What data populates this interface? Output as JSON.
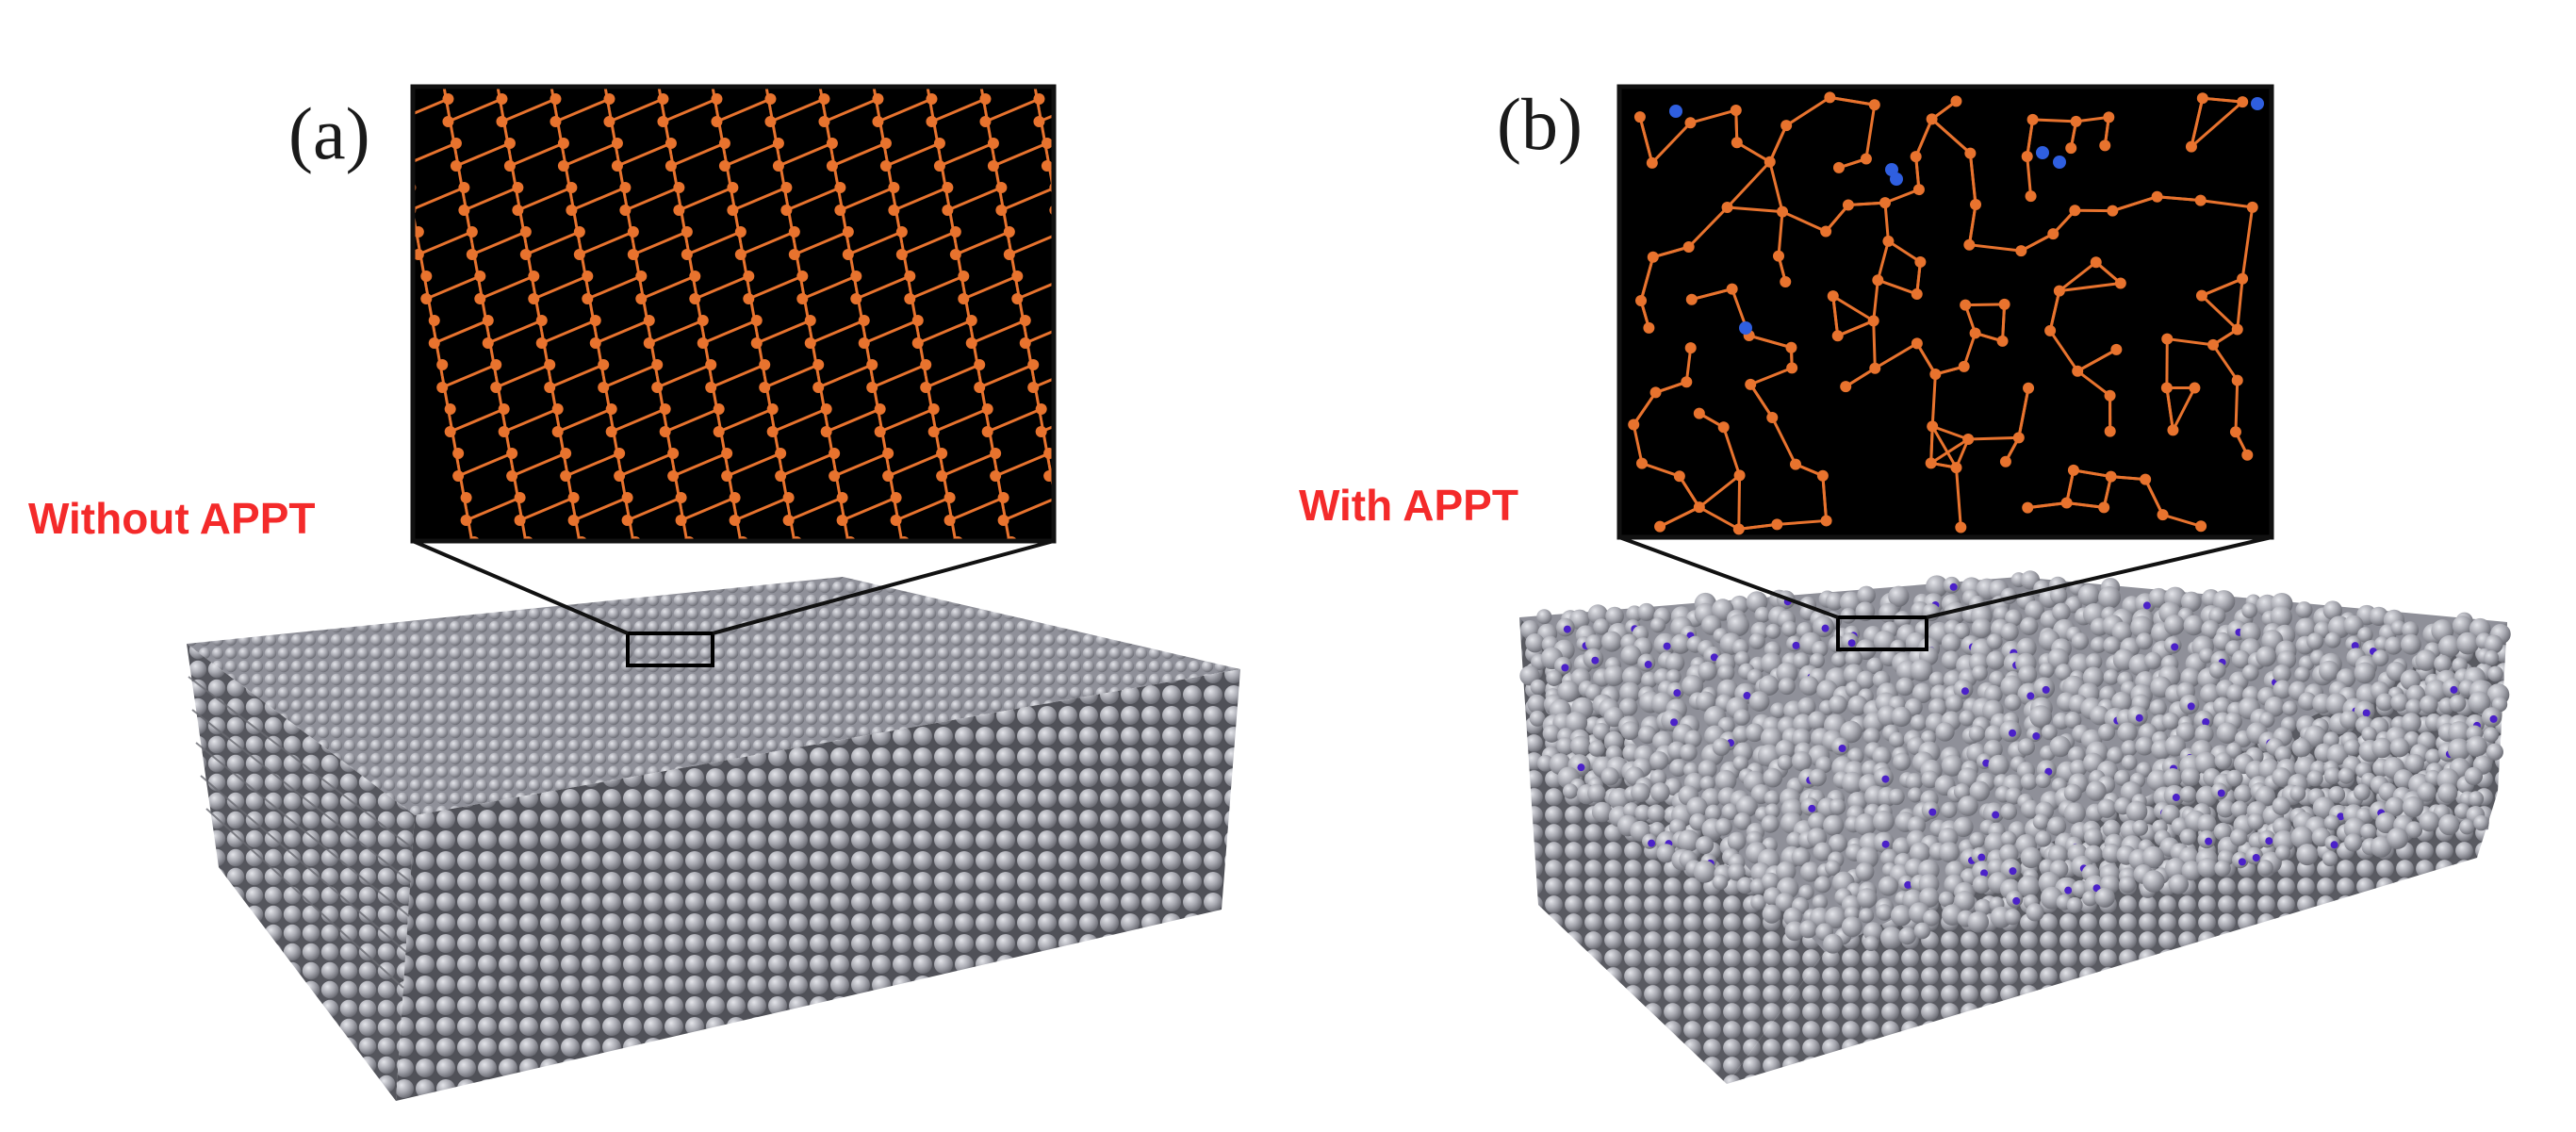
{
  "panels": [
    {
      "id": "a",
      "letter": "(a)",
      "caption": "Without APPT",
      "structure": "ordered-lattice"
    },
    {
      "id": "b",
      "letter": "(b)",
      "caption": "With APPT",
      "structure": "disordered-network"
    }
  ],
  "colors": {
    "background": "#ffffff",
    "inset_background": "#000000",
    "bond_color": "#e8732e",
    "dopant_color": "#2f5fe0",
    "surface_dopant_color": "#4b21c9",
    "atom_color": "#a7a8b0",
    "caption_color": "#f42a2a",
    "label_color": "#1a1a1a"
  },
  "icons": {
    "slab_a": "crystal-slab-icon",
    "slab_b": "amorphous-slab-icon"
  }
}
